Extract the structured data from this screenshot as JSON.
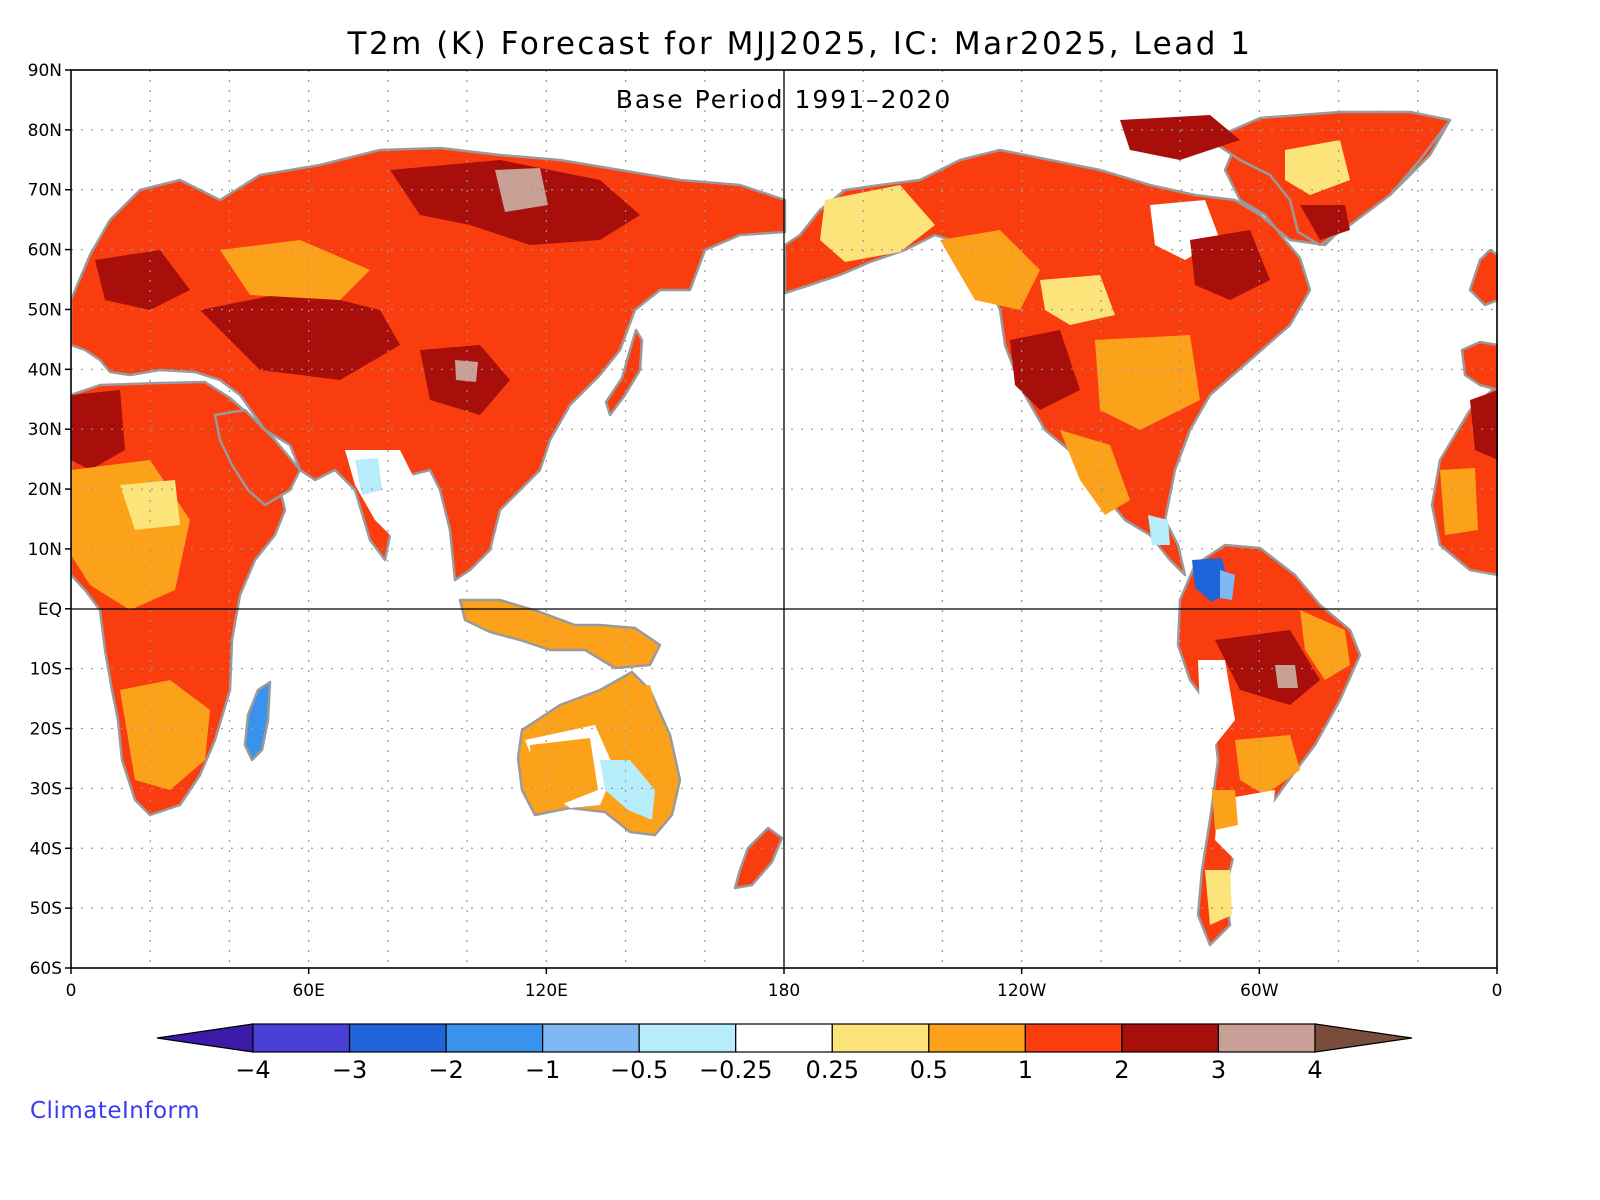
{
  "map": {
    "title": "T2m (K) Forecast for MJJ2025, IC: Mar2025, Lead 1",
    "subtitle": "Base Period 1991–2020",
    "lat_ticks": [
      "90N",
      "80N",
      "70N",
      "60N",
      "50N",
      "40N",
      "30N",
      "20N",
      "10N",
      "EQ",
      "10S",
      "20S",
      "30S",
      "40S",
      "50S",
      "60S"
    ],
    "lon_ticks": [
      "0",
      "60E",
      "120E",
      "180",
      "120W",
      "60W",
      "0"
    ],
    "lon_range": [
      0,
      360
    ],
    "lat_range": [
      -60,
      90
    ],
    "grid_lines": "dotted",
    "equator_line": true,
    "dateline_line": true
  },
  "colorbar": {
    "labels": [
      "−4",
      "−3",
      "−2",
      "−1",
      "−0.5",
      "−0.25",
      "0.25",
      "0.5",
      "1",
      "2",
      "3",
      "4"
    ],
    "colors": [
      "#3b1aa8",
      "#4a3fd6",
      "#1f64d8",
      "#3a92ec",
      "#7fb9f4",
      "#b7ecfa",
      "#ffffff",
      "#fde47a",
      "#fba21a",
      "#fa3d0f",
      "#a80e0a",
      "#c9a095",
      "#7a4c3c"
    ],
    "extend": "both"
  },
  "anomaly_fields": [
    {
      "region": "Siberia",
      "value": 3
    },
    {
      "region": "Europe",
      "value": 2
    },
    {
      "region": "North Africa",
      "value": 2
    },
    {
      "region": "Central Africa",
      "value": 1
    },
    {
      "region": "East Asia",
      "value": 2
    },
    {
      "region": "India",
      "value": 0.5
    },
    {
      "region": "Australia",
      "value": 1
    },
    {
      "region": "Canada",
      "value": 2
    },
    {
      "region": "United States",
      "value": 2
    },
    {
      "region": "Greenland",
      "value": 2
    },
    {
      "region": "South America",
      "value": 2
    },
    {
      "region": "Patagonia",
      "value": 0.25
    }
  ],
  "brand": "ClimateInform"
}
